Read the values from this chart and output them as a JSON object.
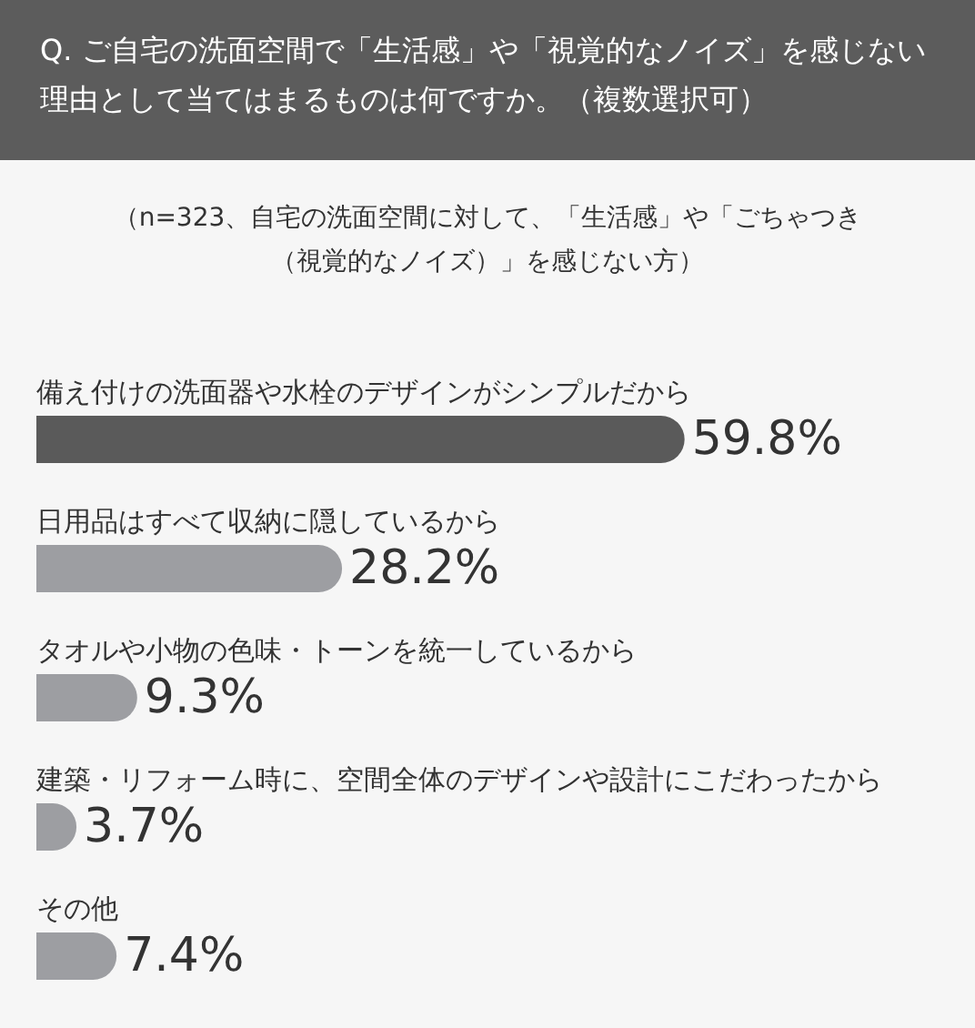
{
  "chart_data": {
    "type": "bar",
    "orientation": "horizontal",
    "title": "Q. ご自宅の洗面空間で「生活感」や「視覚的なノイズ」を感じない理由として当てはまるものは何ですか。（複数選択可）",
    "subtitle": "（n=323、自宅の洗面空間に対して、「生活感」や「ごちゃつき（視覚的なノイズ）」を感じない方）",
    "categories": [
      "備え付けの洗面器や水栓のデザインがシンプルだから",
      "日用品はすべて収納に隠しているから",
      "タオルや小物の色味・トーンを統一しているから",
      "建築・リフォーム時に、空間全体のデザインや設計にこだわったから",
      "その他"
    ],
    "values": [
      59.8,
      28.2,
      9.3,
      3.7,
      7.4
    ],
    "colors": [
      "#5a5a5a",
      "#9d9ea2",
      "#9d9ea2",
      "#9d9ea2",
      "#9d9ea2"
    ],
    "value_labels": [
      "59.8%",
      "28.2%",
      "9.3%",
      "3.7%",
      "7.4%"
    ],
    "tick_labels": "y"
  }
}
